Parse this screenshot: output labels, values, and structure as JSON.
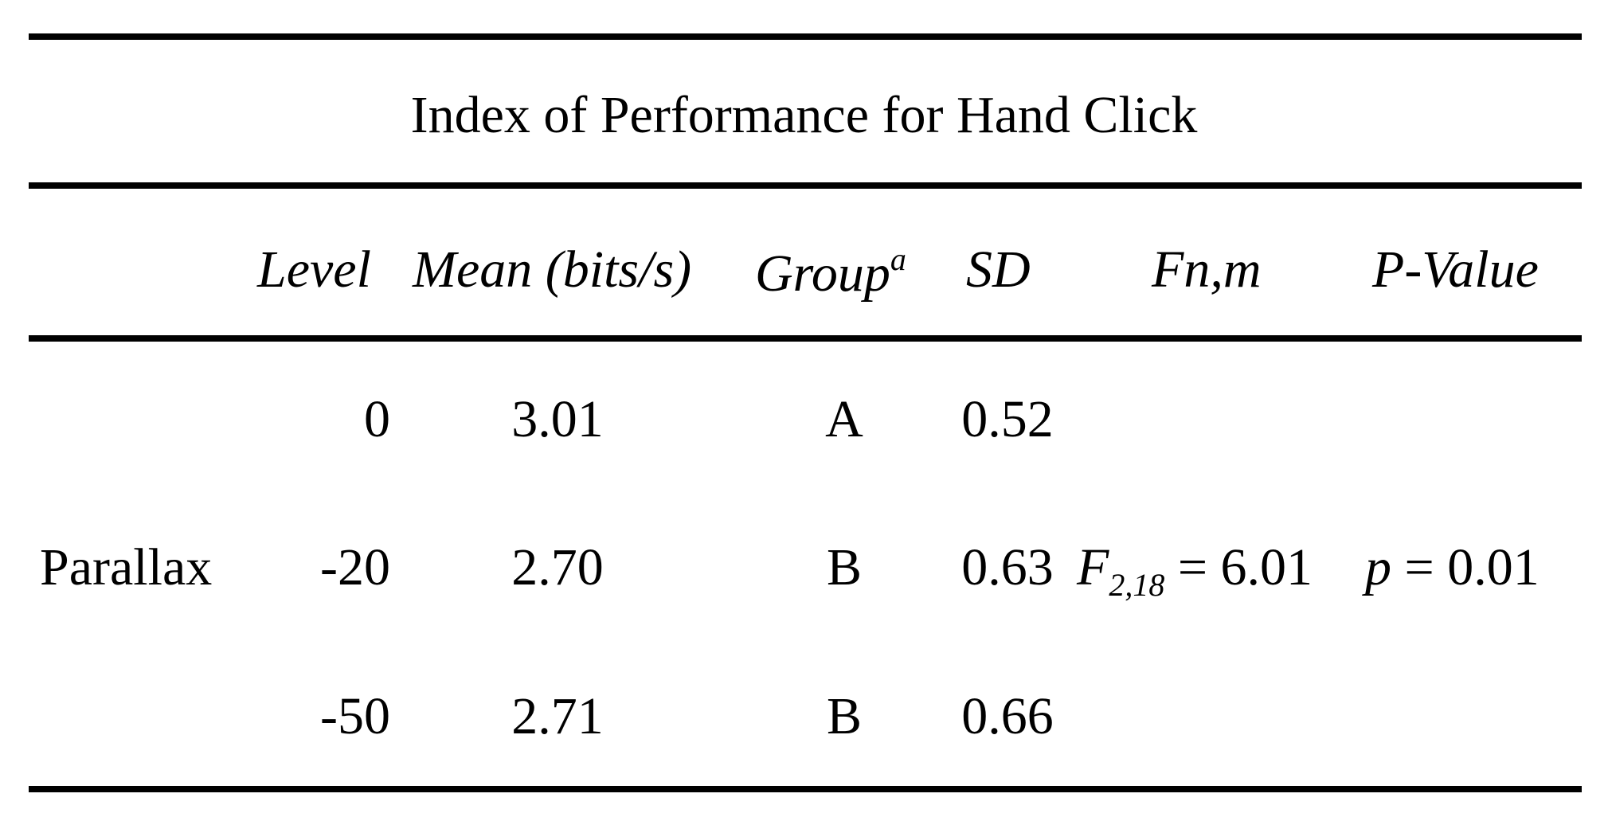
{
  "table": {
    "title": "Index of Performance for Hand Click",
    "headers": {
      "level": "Level",
      "mean": "Mean (bits/s)",
      "group": "Group",
      "group_sup": "a",
      "sd": "SD",
      "f": "Fn,m",
      "p": "P-Value"
    },
    "factor": "Parallax",
    "rows": [
      {
        "level": "0",
        "mean": "3.01",
        "group": "A",
        "sd": "0.52"
      },
      {
        "level": "-20",
        "mean": "2.70",
        "group": "B",
        "sd": "0.63"
      },
      {
        "level": "-50",
        "mean": "2.71",
        "group": "B",
        "sd": "0.66"
      }
    ],
    "stats": {
      "f_symbol": "F",
      "f_sub": "2,18",
      "f_value": " = 6.01",
      "p_symbol": "p",
      "p_value": " = 0.01"
    }
  }
}
